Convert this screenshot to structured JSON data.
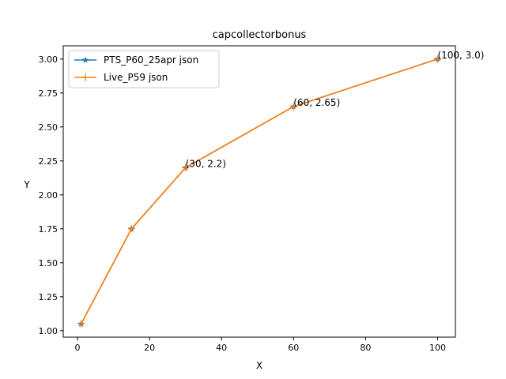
{
  "chart_data": {
    "type": "line",
    "title": "capcollectorbonus",
    "xlabel": "X",
    "ylabel": "Y",
    "xlim": [
      -3.95,
      104.95
    ],
    "ylim": [
      0.9525,
      3.0975
    ],
    "xticks": [
      0,
      20,
      40,
      60,
      80,
      100
    ],
    "yticks": [
      1.0,
      1.25,
      1.5,
      1.75,
      2.0,
      2.25,
      2.5,
      2.75,
      3.0
    ],
    "grid": false,
    "legend_position": "top-left",
    "series": [
      {
        "name": "PTS_P60_25apr json",
        "color": "#1f77b4",
        "marker": "star",
        "x": [
          1,
          15,
          30,
          60,
          100
        ],
        "y": [
          1.05,
          1.75,
          2.2,
          2.65,
          3.0
        ]
      },
      {
        "name": "Live_P59 json",
        "color": "#ff7f0e",
        "marker": "plus",
        "x": [
          1,
          15,
          30,
          60,
          100
        ],
        "y": [
          1.05,
          1.75,
          2.2,
          2.65,
          3.0
        ]
      }
    ],
    "annotations": [
      {
        "text": "(30, 2.2)",
        "x": 30,
        "y": 2.2
      },
      {
        "text": "(60, 2.65)",
        "x": 60,
        "y": 2.65
      },
      {
        "text": "(100, 3.0)",
        "x": 100,
        "y": 3.0
      }
    ]
  }
}
